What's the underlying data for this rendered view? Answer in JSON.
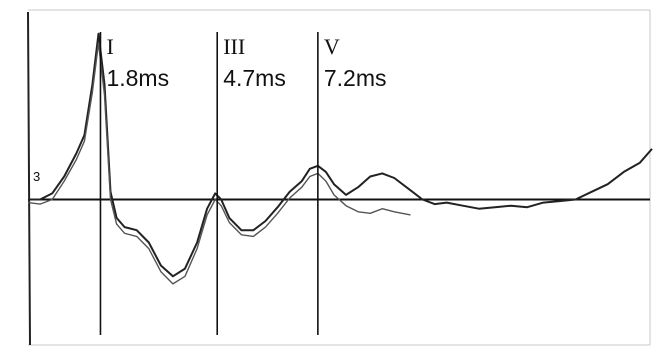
{
  "chart_data": {
    "type": "line",
    "title": "",
    "xlabel": "",
    "ylabel": "",
    "xlim": [
      0,
      15.5
    ],
    "ylim": [
      -1.0,
      1.3
    ],
    "baseline_y": 0,
    "y_marker_label": "3",
    "grid": false,
    "legend": "none",
    "peaks": [
      {
        "label": "I",
        "latency_label": "1.8ms",
        "latency": 1.8
      },
      {
        "label": "III",
        "latency_label": "4.7ms",
        "latency": 4.7
      },
      {
        "label": "V",
        "latency_label": "7.2ms",
        "latency": 7.2
      }
    ],
    "series": [
      {
        "x": [
          0.0,
          0.3,
          0.6,
          0.9,
          1.2,
          1.4,
          1.6,
          1.75,
          1.9,
          2.05,
          2.2,
          2.4,
          2.7,
          3.0,
          3.3,
          3.6,
          3.9,
          4.2,
          4.45,
          4.65,
          4.8,
          5.0,
          5.3,
          5.6,
          5.9,
          6.2,
          6.5,
          6.8,
          7.0,
          7.2,
          7.4,
          7.6,
          7.9,
          8.2,
          8.5,
          8.8,
          9.1,
          9.5,
          9.8,
          10.1,
          10.4,
          10.8,
          11.2,
          11.6,
          12.0,
          12.4,
          12.8,
          13.2,
          13.6,
          14.0,
          14.4,
          14.8,
          15.2,
          15.5
        ],
        "y": [
          0.0,
          0.0,
          0.04,
          0.15,
          0.3,
          0.42,
          0.75,
          1.08,
          0.75,
          0.05,
          -0.12,
          -0.18,
          -0.2,
          -0.28,
          -0.43,
          -0.5,
          -0.45,
          -0.28,
          -0.06,
          0.04,
          0.0,
          -0.12,
          -0.2,
          -0.2,
          -0.14,
          -0.05,
          0.05,
          0.12,
          0.2,
          0.22,
          0.18,
          0.1,
          0.03,
          0.08,
          0.15,
          0.17,
          0.14,
          0.06,
          0.0,
          -0.03,
          -0.02,
          -0.04,
          -0.06,
          -0.05,
          -0.04,
          -0.05,
          -0.02,
          -0.01,
          0.0,
          0.05,
          0.1,
          0.18,
          0.24,
          0.33
        ],
        "color": "#222222"
      },
      {
        "x": [
          0.0,
          0.3,
          0.6,
          0.9,
          1.2,
          1.4,
          1.6,
          1.75,
          1.9,
          2.05,
          2.2,
          2.4,
          2.7,
          3.0,
          3.3,
          3.6,
          3.9,
          4.2,
          4.45,
          4.65,
          4.8,
          5.0,
          5.3,
          5.6,
          5.9,
          6.2,
          6.5,
          6.8,
          7.0,
          7.2,
          7.4,
          7.6,
          7.9,
          8.2,
          8.5,
          8.8,
          9.1,
          9.5
        ],
        "y": [
          -0.02,
          -0.03,
          0.0,
          0.12,
          0.26,
          0.38,
          0.7,
          1.02,
          0.68,
          0.0,
          -0.16,
          -0.22,
          -0.24,
          -0.32,
          -0.47,
          -0.55,
          -0.5,
          -0.32,
          -0.1,
          0.0,
          -0.04,
          -0.15,
          -0.23,
          -0.24,
          -0.18,
          -0.09,
          0.01,
          0.08,
          0.15,
          0.17,
          0.12,
          0.03,
          -0.04,
          -0.08,
          -0.09,
          -0.06,
          -0.08,
          -0.1
        ],
        "color": "#555555"
      }
    ]
  },
  "style": {
    "ink": "#111111",
    "trace_primary": "#222222",
    "trace_secondary": "#555555",
    "frame": "#bbbbbb"
  }
}
